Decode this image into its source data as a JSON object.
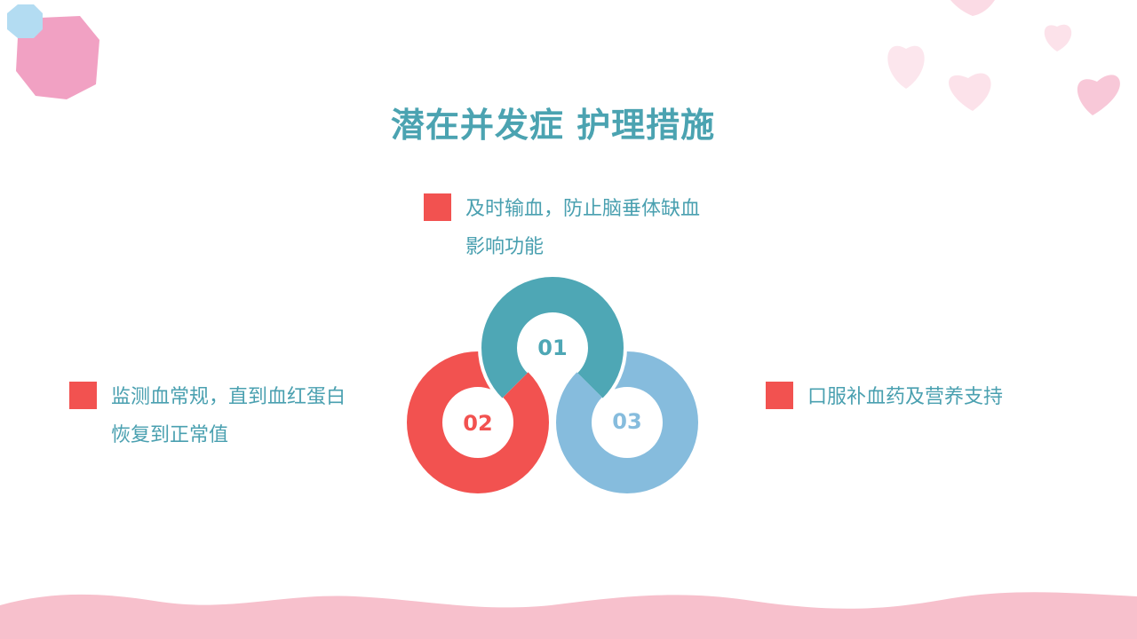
{
  "title": "潜在并发症  护理措施",
  "items": [
    {
      "number": "01",
      "lines": [
        "及时输血，防止脑垂体缺血",
        "影响功能"
      ],
      "color": "#4ea7b5"
    },
    {
      "number": "02",
      "lines": [
        "监测血常规，直到血红蛋白",
        "恢复到正常值"
      ],
      "color": "#f25250"
    },
    {
      "number": "03",
      "lines": [
        "口服补血药及营养支持"
      ],
      "color": "#86bcdd"
    }
  ],
  "colors": {
    "title": "#4ba3b1",
    "bullet": "#f25250",
    "wave": "#f7c0cc"
  }
}
